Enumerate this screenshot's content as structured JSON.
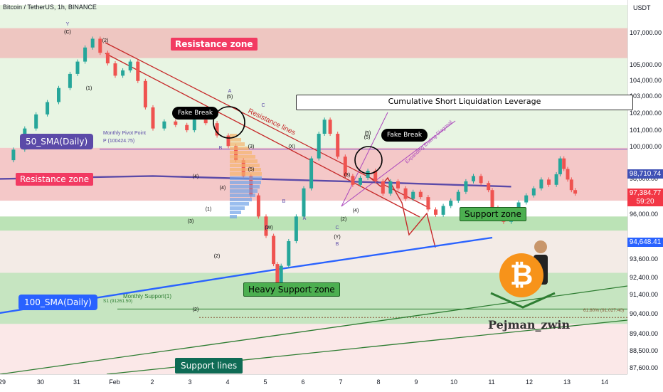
{
  "header": {
    "title": "Bitcoin / TetherUS, 1h, BINANCE",
    "currency": "USDT"
  },
  "chart_data": {
    "type": "line",
    "title": "Bitcoin / TetherUS, 1h, BINANCE",
    "xlabel": "",
    "ylabel": "USDT",
    "x_ticks": [
      "29",
      "30",
      "31",
      "Feb",
      "2",
      "3",
      "4",
      "5",
      "6",
      "7",
      "8",
      "9",
      "10",
      "11",
      "12",
      "13",
      "14"
    ],
    "y_ticks": [
      "107,000.00",
      "105,000.00",
      "104,000.00",
      "103,000.00",
      "102,000.00",
      "101,000.00",
      "100,000.00",
      "98,000.00",
      "96,000.00",
      "93,600.00",
      "92,400.00",
      "91,400.00",
      "90,400.00",
      "89,400.00",
      "88,500.00",
      "87,600.00"
    ],
    "ylim": [
      87000,
      108000
    ],
    "grid": false,
    "series": [
      {
        "name": "BTCUSDT",
        "values": [
          [
            29.0,
            99800
          ],
          [
            29.3,
            100400
          ],
          [
            29.6,
            101600
          ],
          [
            29.9,
            102400
          ],
          [
            30.2,
            103100
          ],
          [
            30.5,
            103900
          ],
          [
            30.8,
            104700
          ],
          [
            31.0,
            105400
          ],
          [
            31.2,
            106200
          ],
          [
            31.4,
            106700
          ],
          [
            31.6,
            105900
          ],
          [
            31.8,
            105300
          ],
          [
            32.0,
            104600
          ],
          [
            32.2,
            104900
          ],
          [
            32.4,
            105400
          ],
          [
            32.6,
            104300
          ],
          [
            32.8,
            102800
          ],
          [
            33.0,
            101600
          ],
          [
            33.3,
            102000
          ],
          [
            33.6,
            101800
          ],
          [
            33.9,
            101500
          ],
          [
            34.1,
            102100
          ],
          [
            34.4,
            101900
          ],
          [
            34.7,
            101200
          ],
          [
            35.0,
            100600
          ],
          [
            35.2,
            99800
          ],
          [
            35.4,
            98900
          ],
          [
            35.6,
            97800
          ],
          [
            35.8,
            96600
          ],
          [
            36.0,
            95500
          ],
          [
            36.2,
            93900
          ],
          [
            36.3,
            92600
          ],
          [
            36.4,
            93800
          ],
          [
            36.6,
            95200
          ],
          [
            36.8,
            96600
          ],
          [
            37.0,
            98200
          ],
          [
            37.2,
            99900
          ],
          [
            37.4,
            101300
          ],
          [
            37.55,
            102100
          ],
          [
            37.7,
            101300
          ],
          [
            37.9,
            100000
          ],
          [
            38.1,
            98900
          ],
          [
            38.3,
            98400
          ],
          [
            38.5,
            98800
          ],
          [
            38.7,
            99200
          ],
          [
            38.9,
            98600
          ],
          [
            39.1,
            97900
          ],
          [
            39.3,
            98600
          ],
          [
            39.5,
            98200
          ],
          [
            39.7,
            97600
          ],
          [
            39.9,
            98000
          ],
          [
            40.1,
            97700
          ],
          [
            40.3,
            97000
          ],
          [
            40.5,
            96700
          ],
          [
            40.7,
            97200
          ],
          [
            40.9,
            97500
          ],
          [
            41.1,
            98000
          ],
          [
            41.3,
            98600
          ],
          [
            41.5,
            98900
          ],
          [
            41.7,
            98500
          ],
          [
            41.9,
            98100
          ],
          [
            42.0,
            97100
          ],
          [
            42.15,
            96500
          ],
          [
            42.3,
            96300
          ],
          [
            42.5,
            97000
          ],
          [
            42.7,
            97400
          ],
          [
            42.9,
            97800
          ],
          [
            43.1,
            98200
          ],
          [
            43.3,
            98700
          ],
          [
            43.5,
            98400
          ],
          [
            43.7,
            99000
          ],
          [
            43.8,
            99900
          ],
          [
            43.9,
            99300
          ],
          [
            44.0,
            98700
          ],
          [
            44.1,
            98100
          ],
          [
            44.2,
            97900
          ]
        ]
      },
      {
        "name": "50_SMA(Daily)",
        "values": [
          [
            28.0,
            98700
          ],
          [
            33.0,
            98900
          ],
          [
            38.0,
            98600
          ],
          [
            42.5,
            98300
          ]
        ]
      },
      {
        "name": "100_SMA(Daily)",
        "values": [
          [
            28.0,
            90800
          ],
          [
            36.0,
            93500
          ],
          [
            42.0,
            95400
          ]
        ]
      }
    ],
    "levels": [
      {
        "name": "Monthly Pivot Point",
        "label": "P (100424.75)",
        "value": 100424.75
      },
      {
        "name": "Monthly Support(1)",
        "label": "S1 (91261.50)",
        "value": 91261.5
      },
      {
        "name": "Fib",
        "label": "61.80% (91,027.40)",
        "value": 91027.4
      }
    ],
    "zones": [
      {
        "name": "Resistance zone",
        "from": 105600,
        "to": 107300,
        "color": "#f0b5b5"
      },
      {
        "name": "Resistance zone",
        "from": 97500,
        "to": 100500,
        "color": "#f0b5b5"
      },
      {
        "name": "Support zone",
        "from": 95800,
        "to": 96600,
        "color": "#a8e0a5"
      },
      {
        "name": "Heavy Support zone",
        "from": 90500,
        "to": 93400,
        "color": "#b7e3b4"
      }
    ],
    "price_labels": [
      {
        "value": "98,710.74",
        "color": "#3f51b5"
      },
      {
        "value": "97,384.77",
        "color": "#f23645"
      },
      {
        "value": "59:20",
        "color": "#f23645"
      },
      {
        "value": "94,648.41",
        "color": "#2962ff"
      }
    ]
  },
  "annotations": {
    "resistance_top": "Resistance zone",
    "resistance_mid": "Resistance zone",
    "support_zone": "Support zone",
    "heavy_support": "Heavy Support zone",
    "support_lines": "Support lines",
    "sma50": "50_SMA(Daily)",
    "sma100": "100_SMA(Daily)",
    "fake_break_1": "Fake Break",
    "fake_break_2": "Fake Break",
    "resistance_lines": "Resistance lines",
    "cumulative": "Cumulative Short Liquidation Leverage",
    "expanding": "Expanding Ending Diagonal",
    "monthly_pivot": "Monthly Pivot Point",
    "monthly_support": "Monthly Support(1)",
    "pivot_label": "P (100424.75)",
    "s1_label": "S1 (91261.50)",
    "fib_label": "61.80% (91,027.40)",
    "author": "Pejman_zwin",
    "waves": [
      "Y",
      "(C)",
      "(2)",
      "(1)",
      "A",
      "(5)",
      "C",
      "(5)",
      "(4)",
      "(3)",
      "(1)",
      "(2)",
      "B",
      "(4)",
      "(2)",
      "(3)",
      "(X)",
      "C",
      "B",
      "(W)",
      "A",
      "(4)",
      "(2)",
      "C",
      "(Y)",
      "B",
      "(5)",
      "(3)",
      "(5)"
    ]
  },
  "colors": {
    "up": "#26a69a",
    "down": "#ef5350",
    "resistance": "#f0b5b5",
    "support": "#a8e0a5",
    "sma50": "#5b4aa8",
    "sma100": "#2962ff"
  }
}
